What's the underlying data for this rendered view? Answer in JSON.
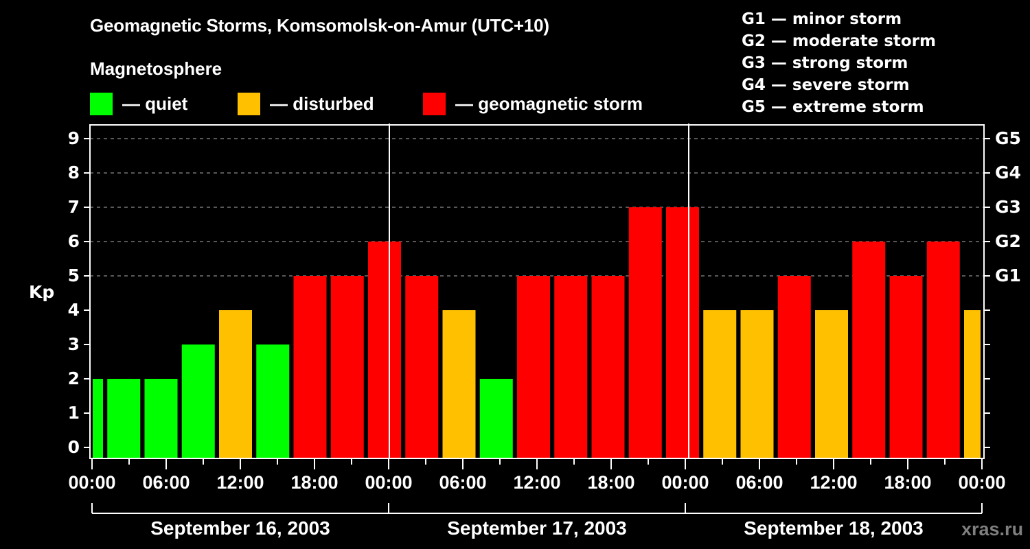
{
  "header": {
    "title": "Geomagnetic Storms, Komsomolsk-on-Amur (UTC+10)",
    "subtitle": "Magnetosphere"
  },
  "legend": [
    {
      "label": "— quiet",
      "color": "#00ff00"
    },
    {
      "label": "— disturbed",
      "color": "#ffc000"
    },
    {
      "label": "— geomagnetic storm",
      "color": "#ff0000"
    }
  ],
  "g_scale": [
    "G1 — minor storm",
    "G2 — moderate storm",
    "G3 — strong storm",
    "G4 — severe storm",
    "G5 — extreme storm"
  ],
  "axes": {
    "y_label": "Kp",
    "y_ticks": [
      "0",
      "1",
      "2",
      "3",
      "4",
      "5",
      "6",
      "7",
      "8",
      "9"
    ],
    "g_ticks": [
      {
        "label": "G1",
        "kp": 5
      },
      {
        "label": "G2",
        "kp": 6
      },
      {
        "label": "G3",
        "kp": 7
      },
      {
        "label": "G4",
        "kp": 8
      },
      {
        "label": "G5",
        "kp": 9
      }
    ],
    "x_ticks": [
      "00:00",
      "06:00",
      "12:00",
      "18:00",
      "00:00",
      "06:00",
      "12:00",
      "18:00",
      "00:00",
      "06:00",
      "12:00",
      "18:00",
      "00:00"
    ],
    "days": [
      "September 16, 2003",
      "September 17, 2003",
      "September 18, 2003"
    ]
  },
  "watermark": "xras.ru",
  "colors": {
    "quiet": "#00ff00",
    "disturbed": "#ffc000",
    "storm": "#ff0000",
    "grid": "#8c8c8c",
    "axis": "#ffffff",
    "background": "#000000"
  },
  "chart_data": {
    "type": "bar",
    "title": "Geomagnetic Storms, Komsomolsk-on-Amur (UTC+10)",
    "xlabel": "",
    "ylabel": "Kp",
    "ylim": [
      0,
      9
    ],
    "grid": "dashed horizontal at Kp 5-9",
    "legend_position": "top",
    "interval_hours": 3,
    "note": "Bars offset ~1.5h relative to tick labels; first and last bars are clipped by the plot frame",
    "categories": [
      "Sep 16 ~00:00",
      "Sep 16 02:00",
      "Sep 16 05:00",
      "Sep 16 08:00",
      "Sep 16 11:00",
      "Sep 16 14:00",
      "Sep 16 17:00",
      "Sep 16 20:00",
      "Sep 16 23:00",
      "Sep 17 02:00",
      "Sep 17 05:00",
      "Sep 17 08:00",
      "Sep 17 11:00",
      "Sep 17 14:00",
      "Sep 17 17:00",
      "Sep 17 20:00",
      "Sep 17 23:00",
      "Sep 18 02:00",
      "Sep 18 05:00",
      "Sep 18 08:00",
      "Sep 18 11:00",
      "Sep 18 14:00",
      "Sep 18 17:00",
      "Sep 18 20:00",
      "Sep 18 23:00"
    ],
    "values": [
      2,
      2,
      2,
      3,
      4,
      3,
      5,
      5,
      6,
      5,
      4,
      2,
      5,
      5,
      5,
      7,
      7,
      4,
      4,
      5,
      4,
      6,
      5,
      6,
      4
    ],
    "status": [
      "quiet",
      "quiet",
      "quiet",
      "quiet",
      "disturbed",
      "quiet",
      "storm",
      "storm",
      "storm",
      "storm",
      "disturbed",
      "quiet",
      "storm",
      "storm",
      "storm",
      "storm",
      "storm",
      "disturbed",
      "disturbed",
      "storm",
      "disturbed",
      "storm",
      "storm",
      "storm",
      "disturbed"
    ]
  }
}
